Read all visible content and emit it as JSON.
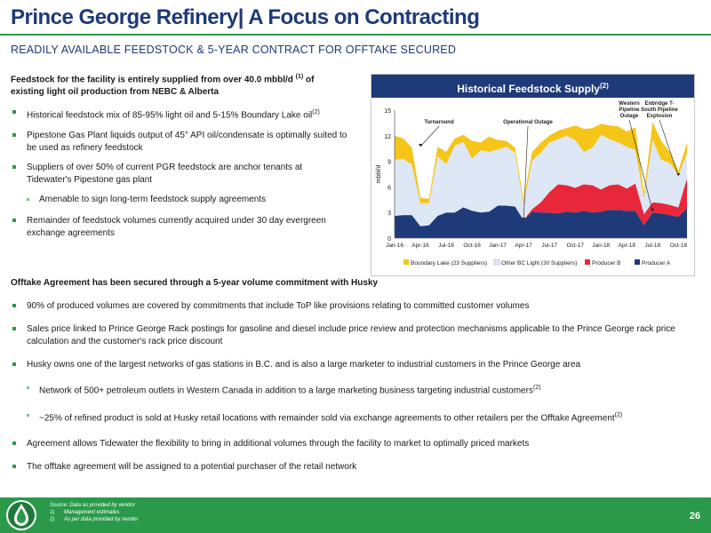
{
  "header": {
    "title": "Prince George Refinery| A Focus on Contracting",
    "subtitle": "READILY AVAILABLE FEEDSTOCK & 5-YEAR CONTRACT FOR OFFTAKE SECURED"
  },
  "feedstock": {
    "lead_text": "Feedstock for the facility is entirely supplied from over 40.0 mbbl/d",
    "lead_sup": "(1)",
    "lead_text_2": "of existing light oil production from NEBC & Alberta",
    "bullet_1": "Historical feedstock mix of 85-95% light oil and 5-15% Boundary Lake oil",
    "bullet_1_sup": "(2)",
    "bullet_2": "Pipestone Gas Plant liquids output of 45° API oil/condensate is optimally suited to be used as refinery feedstock",
    "bullet_3": "Suppliers of over 50% of current PGR feedstock are anchor tenants at Tidewater's Pipestone gas plant",
    "sub_bullet_1": "Amenable to sign long-term feedstock supply agreements",
    "bullet_4": "Remainder of feedstock volumes currently acquired under 30 day evergreen exchange agreements"
  },
  "offtake": {
    "lead": "Offtake Agreement has been secured through a 5-year volume commitment with Husky",
    "bullet_1": "90% of produced volumes are covered by commitments that include ToP like provisions relating to committed customer volumes",
    "bullet_2": "Sales price linked to Prince George Rack postings for gasoline and diesel include price review and protection mechanisms applicable to the Prince George rack price calculation and the customer's rack price discount",
    "bullet_3": "Husky owns one of the largest networks of gas stations in B.C. and is also a large marketer to industrial customers in the Prince George area",
    "sub_1": "Network of 500+ petroleum outlets in Western Canada in addition to a large marketing business targeting industrial customers",
    "sub_1_sup": "(2)",
    "sub_2": "~25% of refined product is sold at Husky retail locations with remainder sold via exchange agreements to other retailers per the Offtake Agreement",
    "sub_2_sup": "(2)",
    "bullet_4": "Agreement allows Tidewater the flexibility to bring in additional volumes through the facility to market to optimally priced markets",
    "bullet_5": "The offtake agreement will be assigned to a potential purchaser of the retail network"
  },
  "chart_header": {
    "title": "Historical Feedstock Supply",
    "sup": "(2)"
  },
  "chart_data": {
    "type": "area",
    "stacked": true,
    "ylabel": "mbbl/d",
    "ylim": [
      0,
      15
    ],
    "yticks": [
      0,
      3,
      6,
      9,
      12,
      15
    ],
    "x_tick_labels": [
      "Jan-16",
      "Apr-16",
      "Jul-16",
      "Oct-16",
      "Jan-17",
      "Apr-17",
      "Jul-17",
      "Oct-17",
      "Jan-18",
      "Apr-18",
      "Jul-18",
      "Oct-18"
    ],
    "x": [
      "Jan-16",
      "Feb-16",
      "Mar-16",
      "Apr-16",
      "May-16",
      "Jun-16",
      "Jul-16",
      "Aug-16",
      "Sep-16",
      "Oct-16",
      "Nov-16",
      "Dec-16",
      "Jan-17",
      "Feb-17",
      "Mar-17",
      "Apr-17",
      "May-17",
      "Jun-17",
      "Jul-17",
      "Aug-17",
      "Sep-17",
      "Oct-17",
      "Nov-17",
      "Dec-17",
      "Jan-18",
      "Feb-18",
      "Mar-18",
      "Apr-18",
      "May-18",
      "Jun-18",
      "Jul-18",
      "Aug-18",
      "Sep-18",
      "Oct-18",
      "Nov-18"
    ],
    "series": [
      {
        "name": "Producer A",
        "color": "#1f3a78",
        "values": [
          2.6,
          2.7,
          2.7,
          1.4,
          1.5,
          2.6,
          3.0,
          3.0,
          3.6,
          3.2,
          3.0,
          3.1,
          3.8,
          3.8,
          3.7,
          2.1,
          3.1,
          3.0,
          3.0,
          2.9,
          3.1,
          3.0,
          3.2,
          3.0,
          3.1,
          3.3,
          3.3,
          3.2,
          3.2,
          1.5,
          3.0,
          2.9,
          2.7,
          2.5,
          3.5
        ]
      },
      {
        "name": "Producer B",
        "color": "#e8283a",
        "values": [
          0,
          0,
          0,
          0,
          0,
          0,
          0,
          0,
          0,
          0,
          0,
          0,
          0,
          0,
          0,
          0,
          0.3,
          1.2,
          2.4,
          3.4,
          3.1,
          2.9,
          3.1,
          3.2,
          2.6,
          2.9,
          3.0,
          2.6,
          3.2,
          1.3,
          1.2,
          1.2,
          1.2,
          1.1,
          3.5
        ]
      },
      {
        "name": "Other BC Light (30 Suppliers)",
        "color": "#dde7f6",
        "values": [
          6.6,
          6.6,
          5.9,
          2.7,
          2.6,
          7.0,
          5.7,
          7.8,
          7.7,
          6.1,
          7.3,
          7.0,
          6.6,
          6.9,
          6.3,
          1.8,
          5.7,
          5.8,
          5.8,
          5.3,
          5.8,
          5.6,
          3.8,
          4.4,
          6.4,
          5.4,
          4.9,
          4.9,
          3.9,
          1.9,
          7.3,
          5.1,
          4.9,
          3.8,
          2.9
        ]
      },
      {
        "name": "Boundary Lake (23 Suppliers)",
        "color": "#f5c518",
        "values": [
          2.8,
          2.4,
          2.0,
          0.6,
          0.5,
          1.1,
          1.4,
          0.9,
          0.8,
          2.1,
          0.9,
          1.8,
          1.1,
          0.7,
          0.6,
          0.6,
          1.0,
          1.2,
          0.8,
          1.0,
          0.9,
          1.7,
          2.7,
          2.3,
          1.3,
          1.6,
          1.9,
          1.8,
          2.7,
          0.6,
          2.1,
          2.2,
          1.3,
          0.5,
          1.3
        ]
      }
    ],
    "legend_order": [
      "Boundary Lake (23 Suppliers)",
      "Other BC Light (30 Suppliers)",
      "Producer B",
      "Producer A"
    ],
    "legend_position": "bottom",
    "annotations": [
      {
        "text": "Turnaround",
        "x": "Apr-16"
      },
      {
        "text": "Operational Outage",
        "x": "Apr-17"
      },
      {
        "text": "Western Pipeline Outage",
        "x": "Jul-18"
      },
      {
        "text": "Enbridge T-South Pipeline Explosion",
        "x": "Oct-18"
      }
    ]
  },
  "footer": {
    "source": "Source: Data as provided by vendor",
    "note_1_num": "1)",
    "note_1": "Management estimates",
    "note_2_num": "2)",
    "note_2": "As per data provided by vendor",
    "page_number": "26"
  }
}
